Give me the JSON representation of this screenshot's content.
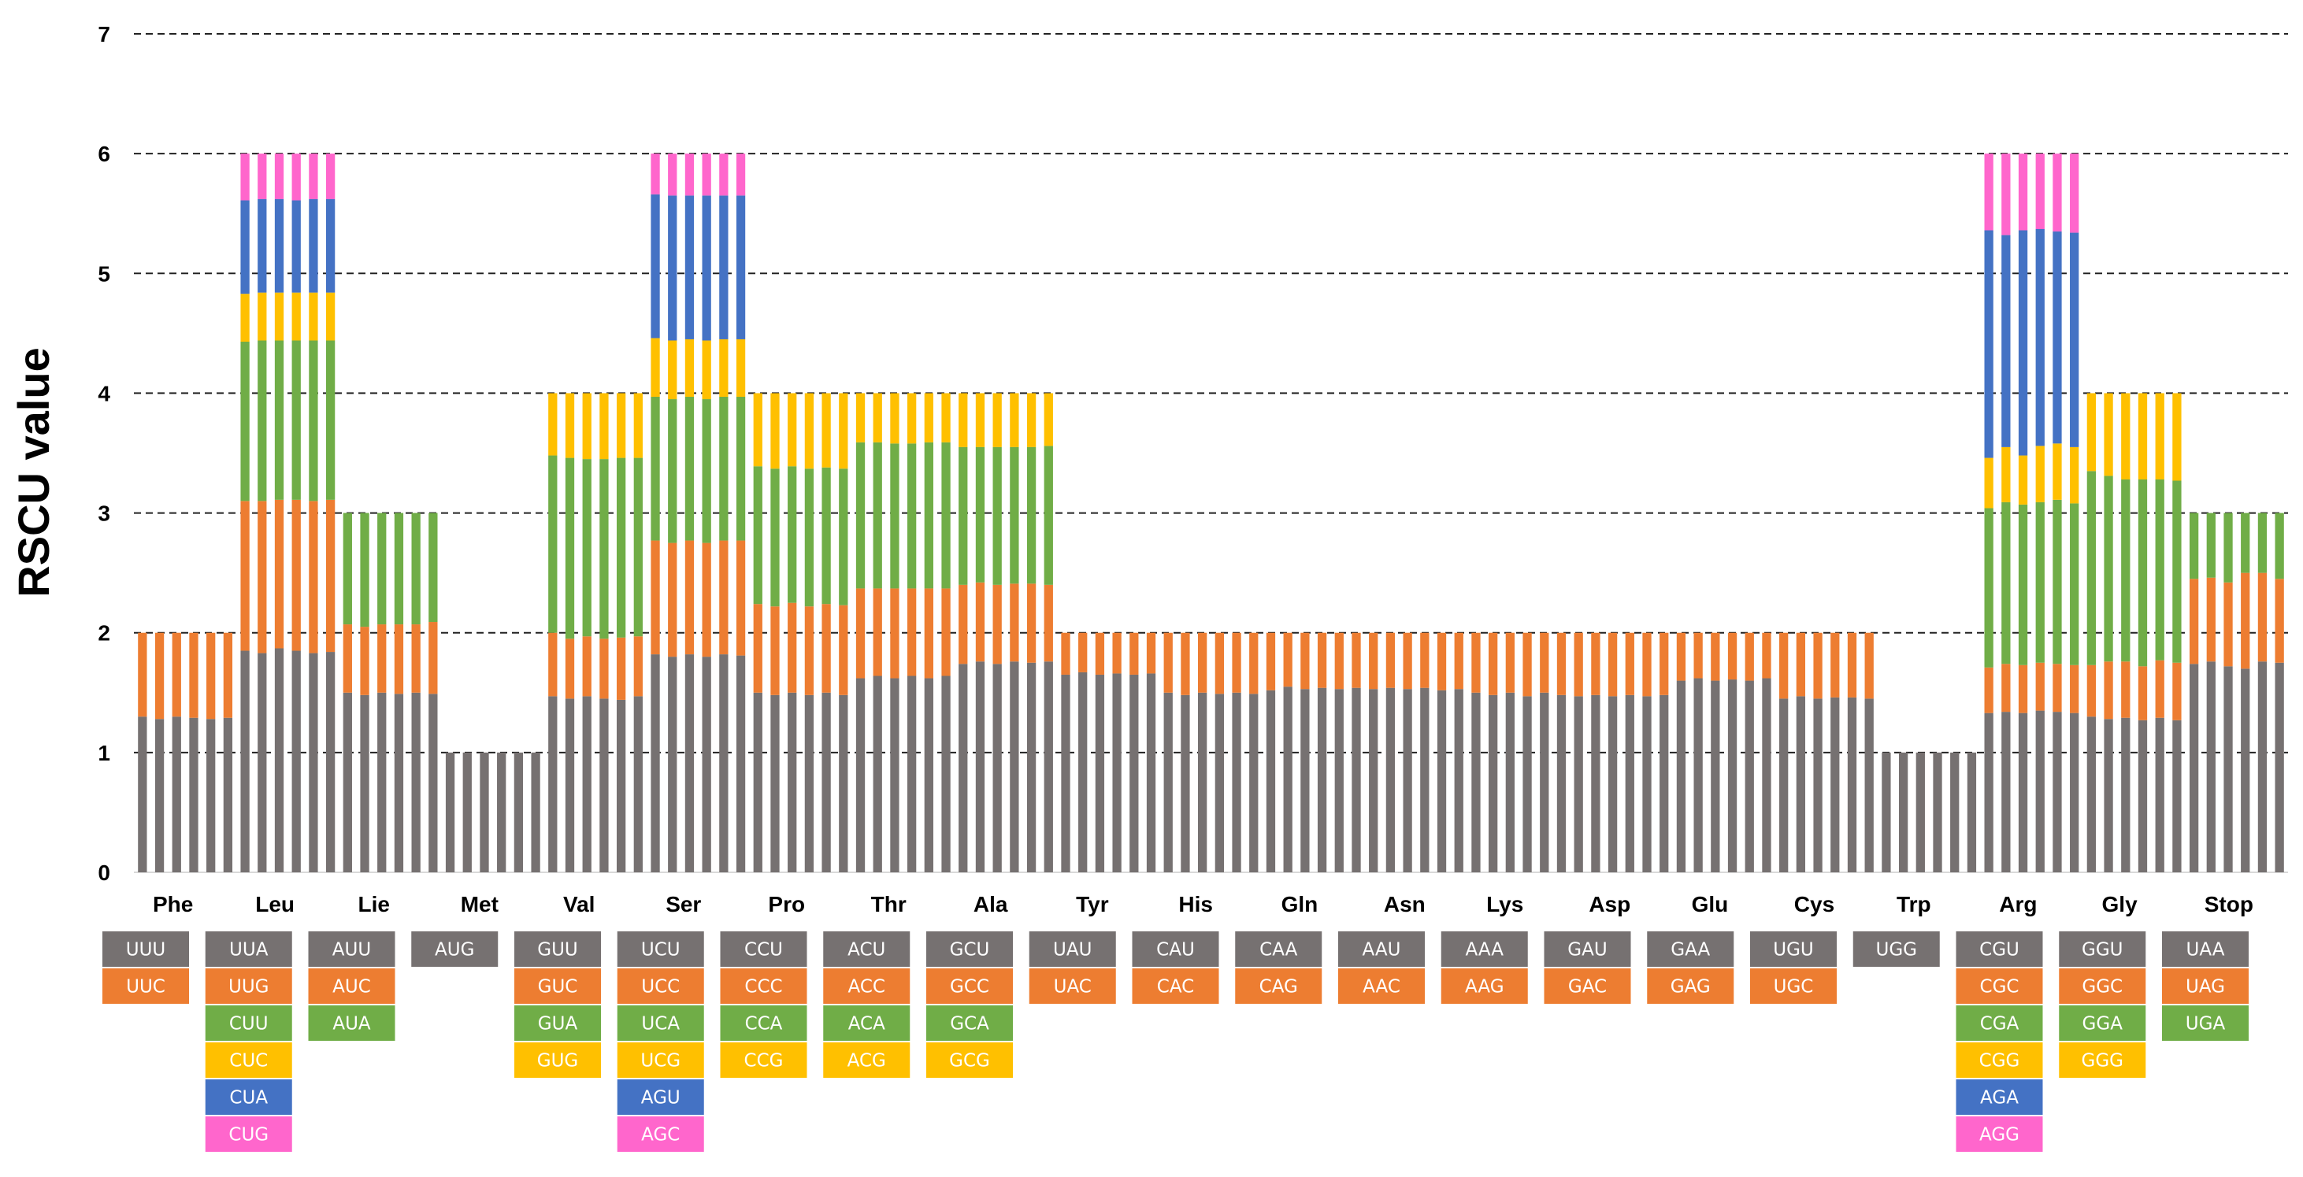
{
  "chart_data": {
    "type": "bar",
    "stacked": true,
    "ylabel": "RSCU value",
    "ylim": [
      0,
      7
    ],
    "yticks": [
      0,
      1,
      2,
      3,
      4,
      5,
      6,
      7
    ],
    "grid": "dashed-horizontal",
    "bars_per_group": 6,
    "colors": [
      "#767171",
      "#ED7D31",
      "#70AD47",
      "#FFC000",
      "#4472C4",
      "#FF66CC"
    ],
    "groups": [
      {
        "aa": "Phe",
        "codons": [
          "UUU",
          "UUC"
        ],
        "values": [
          [
            1.3,
            0.7
          ],
          [
            1.28,
            0.72
          ],
          [
            1.3,
            0.7
          ],
          [
            1.29,
            0.71
          ],
          [
            1.28,
            0.72
          ],
          [
            1.29,
            0.71
          ]
        ]
      },
      {
        "aa": "Leu",
        "codons": [
          "UUA",
          "UUG",
          "CUU",
          "CUC",
          "CUA",
          "CUG"
        ],
        "values": [
          [
            1.85,
            1.25,
            1.33,
            0.4,
            0.78,
            0.39
          ],
          [
            1.83,
            1.27,
            1.34,
            0.4,
            0.78,
            0.38
          ],
          [
            1.87,
            1.24,
            1.33,
            0.4,
            0.78,
            0.38
          ],
          [
            1.85,
            1.26,
            1.33,
            0.4,
            0.77,
            0.39
          ],
          [
            1.83,
            1.27,
            1.34,
            0.4,
            0.78,
            0.38
          ],
          [
            1.84,
            1.27,
            1.33,
            0.4,
            0.78,
            0.38
          ]
        ]
      },
      {
        "aa": "Lie",
        "codons": [
          "AUU",
          "AUC",
          "AUA"
        ],
        "values": [
          [
            1.5,
            0.57,
            0.93
          ],
          [
            1.48,
            0.57,
            0.95
          ],
          [
            1.5,
            0.57,
            0.93
          ],
          [
            1.49,
            0.58,
            0.93
          ],
          [
            1.5,
            0.57,
            0.93
          ],
          [
            1.49,
            0.6,
            0.91
          ]
        ]
      },
      {
        "aa": "Met",
        "codons": [
          "AUG"
        ],
        "values": [
          [
            1
          ],
          [
            1
          ],
          [
            1
          ],
          [
            1
          ],
          [
            1
          ],
          [
            1
          ]
        ]
      },
      {
        "aa": "Val",
        "codons": [
          "GUU",
          "GUC",
          "GUA",
          "GUG"
        ],
        "values": [
          [
            1.47,
            0.53,
            1.48,
            0.52
          ],
          [
            1.45,
            0.5,
            1.51,
            0.54
          ],
          [
            1.47,
            0.5,
            1.48,
            0.55
          ],
          [
            1.45,
            0.5,
            1.5,
            0.55
          ],
          [
            1.44,
            0.52,
            1.5,
            0.54
          ],
          [
            1.47,
            0.5,
            1.49,
            0.54
          ]
        ]
      },
      {
        "aa": "Ser",
        "codons": [
          "UCU",
          "UCC",
          "UCA",
          "UCG",
          "AGU",
          "AGC"
        ],
        "values": [
          [
            1.82,
            0.95,
            1.2,
            0.49,
            1.2,
            0.34
          ],
          [
            1.8,
            0.95,
            1.2,
            0.49,
            1.21,
            0.35
          ],
          [
            1.82,
            0.95,
            1.2,
            0.48,
            1.2,
            0.35
          ],
          [
            1.8,
            0.95,
            1.2,
            0.49,
            1.21,
            0.35
          ],
          [
            1.82,
            0.95,
            1.2,
            0.48,
            1.2,
            0.35
          ],
          [
            1.81,
            0.96,
            1.2,
            0.48,
            1.2,
            0.35
          ]
        ]
      },
      {
        "aa": "Pro",
        "codons": [
          "CCU",
          "CCC",
          "CCA",
          "CCG"
        ],
        "values": [
          [
            1.5,
            0.74,
            1.15,
            0.61
          ],
          [
            1.48,
            0.74,
            1.15,
            0.63
          ],
          [
            1.5,
            0.75,
            1.14,
            0.61
          ],
          [
            1.48,
            0.74,
            1.15,
            0.63
          ],
          [
            1.5,
            0.74,
            1.14,
            0.62
          ],
          [
            1.48,
            0.75,
            1.14,
            0.63
          ]
        ]
      },
      {
        "aa": "Thr",
        "codons": [
          "ACU",
          "ACC",
          "ACA",
          "ACG"
        ],
        "values": [
          [
            1.62,
            0.75,
            1.22,
            0.41
          ],
          [
            1.64,
            0.73,
            1.22,
            0.41
          ],
          [
            1.62,
            0.75,
            1.21,
            0.42
          ],
          [
            1.64,
            0.73,
            1.21,
            0.42
          ],
          [
            1.62,
            0.75,
            1.22,
            0.41
          ],
          [
            1.64,
            0.73,
            1.22,
            0.41
          ]
        ]
      },
      {
        "aa": "Ala",
        "codons": [
          "GCU",
          "GCC",
          "GCA",
          "GCG"
        ],
        "values": [
          [
            1.74,
            0.66,
            1.15,
            0.45
          ],
          [
            1.76,
            0.66,
            1.13,
            0.45
          ],
          [
            1.74,
            0.66,
            1.15,
            0.45
          ],
          [
            1.76,
            0.65,
            1.14,
            0.45
          ],
          [
            1.75,
            0.66,
            1.14,
            0.45
          ],
          [
            1.76,
            0.64,
            1.16,
            0.44
          ]
        ]
      },
      {
        "aa": "Tyr",
        "codons": [
          "UAU",
          "UAC"
        ],
        "values": [
          [
            1.65,
            0.35
          ],
          [
            1.67,
            0.33
          ],
          [
            1.65,
            0.35
          ],
          [
            1.66,
            0.34
          ],
          [
            1.65,
            0.35
          ],
          [
            1.66,
            0.34
          ]
        ]
      },
      {
        "aa": "His",
        "codons": [
          "CAU",
          "CAC"
        ],
        "values": [
          [
            1.5,
            0.5
          ],
          [
            1.48,
            0.52
          ],
          [
            1.5,
            0.5
          ],
          [
            1.49,
            0.51
          ],
          [
            1.5,
            0.5
          ],
          [
            1.49,
            0.51
          ]
        ]
      },
      {
        "aa": "Gln",
        "codons": [
          "CAA",
          "CAG"
        ],
        "values": [
          [
            1.52,
            0.48
          ],
          [
            1.55,
            0.45
          ],
          [
            1.53,
            0.47
          ],
          [
            1.54,
            0.46
          ],
          [
            1.53,
            0.47
          ],
          [
            1.54,
            0.46
          ]
        ]
      },
      {
        "aa": "Asn",
        "codons": [
          "AAU",
          "AAC"
        ],
        "values": [
          [
            1.53,
            0.47
          ],
          [
            1.54,
            0.46
          ],
          [
            1.53,
            0.47
          ],
          [
            1.54,
            0.46
          ],
          [
            1.52,
            0.48
          ],
          [
            1.53,
            0.47
          ]
        ]
      },
      {
        "aa": "Lys",
        "codons": [
          "AAA",
          "AAG"
        ],
        "values": [
          [
            1.5,
            0.5
          ],
          [
            1.48,
            0.52
          ],
          [
            1.5,
            0.5
          ],
          [
            1.47,
            0.53
          ],
          [
            1.5,
            0.5
          ],
          [
            1.48,
            0.52
          ]
        ]
      },
      {
        "aa": "Asp",
        "codons": [
          "GAU",
          "GAC"
        ],
        "values": [
          [
            1.47,
            0.53
          ],
          [
            1.48,
            0.52
          ],
          [
            1.47,
            0.53
          ],
          [
            1.48,
            0.52
          ],
          [
            1.47,
            0.53
          ],
          [
            1.48,
            0.52
          ]
        ]
      },
      {
        "aa": "Glu",
        "codons": [
          "GAA",
          "GAG"
        ],
        "values": [
          [
            1.6,
            0.4
          ],
          [
            1.62,
            0.38
          ],
          [
            1.6,
            0.4
          ],
          [
            1.61,
            0.39
          ],
          [
            1.6,
            0.4
          ],
          [
            1.62,
            0.38
          ]
        ]
      },
      {
        "aa": "Cys",
        "codons": [
          "UGU",
          "UGC"
        ],
        "values": [
          [
            1.45,
            0.55
          ],
          [
            1.47,
            0.53
          ],
          [
            1.45,
            0.55
          ],
          [
            1.46,
            0.54
          ],
          [
            1.46,
            0.54
          ],
          [
            1.45,
            0.55
          ]
        ]
      },
      {
        "aa": "Trp",
        "codons": [
          "UGG"
        ],
        "values": [
          [
            1
          ],
          [
            1
          ],
          [
            1
          ],
          [
            1
          ],
          [
            1
          ],
          [
            1
          ]
        ]
      },
      {
        "aa": "Arg",
        "codons": [
          "CGU",
          "CGC",
          "CGA",
          "CGG",
          "AGA",
          "AGG"
        ],
        "values": [
          [
            1.33,
            0.38,
            1.33,
            0.42,
            1.9,
            0.64
          ],
          [
            1.34,
            0.4,
            1.35,
            0.46,
            1.77,
            0.68
          ],
          [
            1.33,
            0.4,
            1.34,
            0.41,
            1.88,
            0.64
          ],
          [
            1.35,
            0.4,
            1.34,
            0.47,
            1.81,
            0.63
          ],
          [
            1.34,
            0.4,
            1.37,
            0.47,
            1.77,
            0.65
          ],
          [
            1.33,
            0.4,
            1.35,
            0.47,
            1.79,
            0.66
          ]
        ]
      },
      {
        "aa": "Gly",
        "codons": [
          "GGU",
          "GGC",
          "GGA",
          "GGG"
        ],
        "values": [
          [
            1.3,
            0.43,
            1.62,
            0.65
          ],
          [
            1.28,
            0.48,
            1.55,
            0.69
          ],
          [
            1.29,
            0.47,
            1.52,
            0.72
          ],
          [
            1.27,
            0.45,
            1.56,
            0.72
          ],
          [
            1.29,
            0.48,
            1.51,
            0.72
          ],
          [
            1.27,
            0.48,
            1.52,
            0.73
          ]
        ]
      },
      {
        "aa": "Stop",
        "codons": [
          "UAA",
          "UAG",
          "UGA"
        ],
        "values": [
          [
            1.74,
            0.71,
            0.55
          ],
          [
            1.76,
            0.7,
            0.54
          ],
          [
            1.72,
            0.7,
            0.58
          ],
          [
            1.7,
            0.8,
            0.5
          ],
          [
            1.76,
            0.74,
            0.5
          ],
          [
            1.75,
            0.7,
            0.55
          ]
        ]
      }
    ]
  }
}
